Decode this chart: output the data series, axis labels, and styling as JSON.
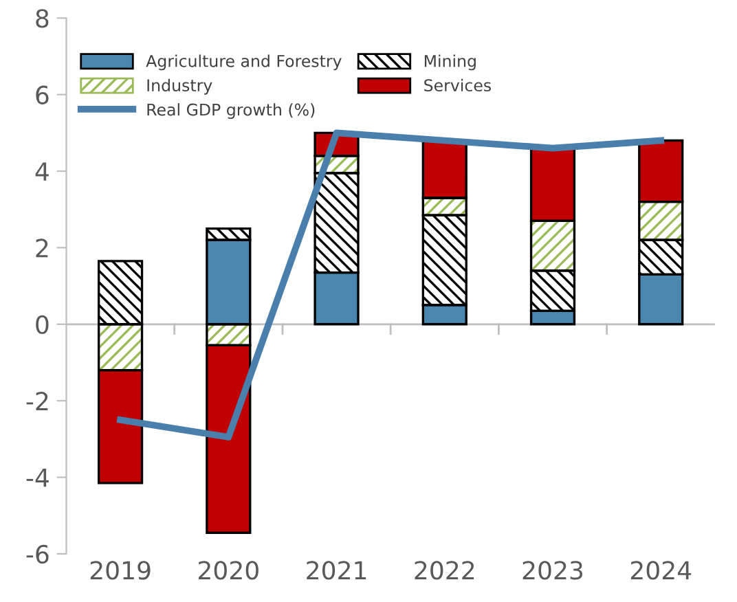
{
  "chart_data": {
    "type": "bar",
    "stacked": true,
    "categories": [
      "2019",
      "2020",
      "2021",
      "2022",
      "2023",
      "2024"
    ],
    "series": [
      {
        "name": "Agriculture and Forestry",
        "color": "#4a86ad",
        "values": [
          0,
          2.2,
          1.35,
          0.5,
          0.35,
          1.3
        ]
      },
      {
        "name": "Mining",
        "color": "#ffffff",
        "values": [
          1.65,
          0.3,
          2.6,
          2.35,
          1.05,
          0.9
        ]
      },
      {
        "name": "Industry",
        "color": "#ffffff",
        "values": [
          -1.2,
          -0.55,
          0.45,
          0.45,
          1.3,
          1.0
        ]
      },
      {
        "name": "Services",
        "color": "#c00000",
        "values": [
          -2.95,
          -4.9,
          0.6,
          1.5,
          1.9,
          1.6
        ]
      },
      {
        "name": "Real GDP growth (%)",
        "type": "line",
        "color": "#4a7fab",
        "values": [
          -2.5,
          -2.95,
          5.0,
          4.8,
          4.6,
          4.8
        ]
      }
    ],
    "ylim": [
      -6,
      8
    ],
    "yticks": [
      -6,
      -4,
      -2,
      0,
      2,
      4,
      6,
      8
    ],
    "ref_lines": [
      {
        "axis": "y",
        "value": 0,
        "color": "#bfbfbf"
      }
    ],
    "grid": false,
    "legend": "top left"
  }
}
